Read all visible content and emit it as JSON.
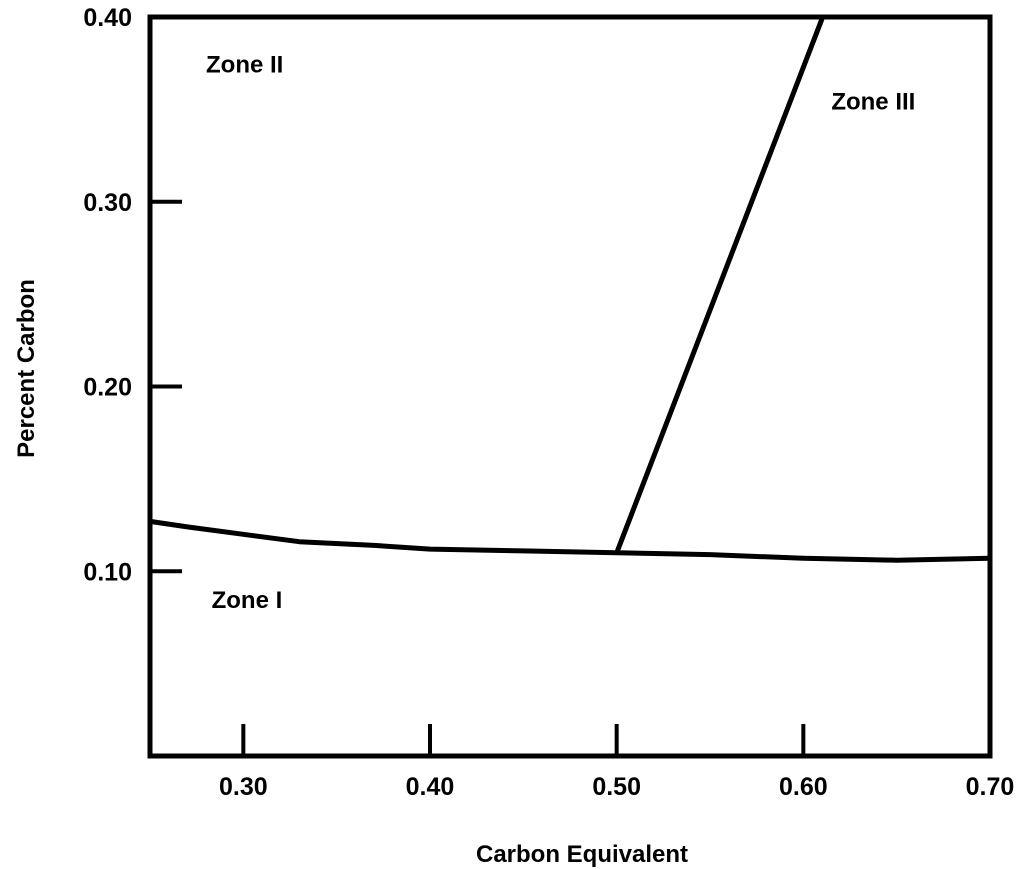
{
  "chart_data": {
    "type": "line",
    "title": "",
    "xlabel": "Carbon Equivalent",
    "ylabel": "Percent Carbon",
    "xlim": [
      0.25,
      0.7
    ],
    "ylim": [
      0.0,
      0.4
    ],
    "x_ticks": [
      0.3,
      0.4,
      0.5,
      0.6,
      0.7
    ],
    "x_tick_labels": [
      "0.30",
      "0.40",
      "0.50",
      "0.60",
      "0.70"
    ],
    "y_ticks": [
      0.1,
      0.2,
      0.3,
      0.4
    ],
    "y_tick_labels": [
      "0.10",
      "0.20",
      "0.30",
      "0.40"
    ],
    "grid": false,
    "series": [
      {
        "x": [
          0.25,
          0.27,
          0.3,
          0.33,
          0.37,
          0.4,
          0.45,
          0.5,
          0.55,
          0.6,
          0.65,
          0.7
        ],
        "y": [
          0.127,
          0.124,
          0.12,
          0.116,
          0.114,
          0.112,
          0.111,
          0.11,
          0.109,
          0.107,
          0.106,
          0.107
        ]
      },
      {
        "x": [
          0.5,
          0.61
        ],
        "y": [
          0.11,
          0.399
        ]
      }
    ],
    "annotations": [
      {
        "text": "Zone II",
        "x": 0.28,
        "y": 0.37
      },
      {
        "text": "Zone III",
        "x": 0.615,
        "y": 0.35
      },
      {
        "text": "Zone I",
        "x": 0.283,
        "y": 0.08
      }
    ]
  }
}
